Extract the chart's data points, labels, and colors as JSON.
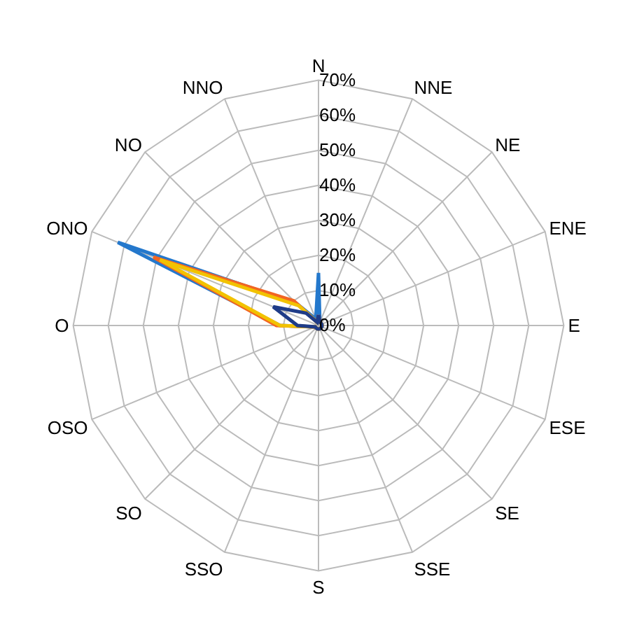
{
  "chart_data": {
    "type": "radar",
    "categories": [
      "N",
      "NNE",
      "NE",
      "ENE",
      "E",
      "ESE",
      "SE",
      "SSE",
      "S",
      "SSO",
      "SO",
      "OSO",
      "O",
      "ONO",
      "NO",
      "NNO"
    ],
    "series": [
      {
        "color": "#2478cc",
        "values": [
          15,
          1,
          1,
          1,
          1,
          1,
          1,
          1,
          1,
          1,
          1,
          1,
          11,
          62,
          9,
          2
        ]
      },
      {
        "color": "#f26522",
        "values": [
          3,
          1,
          1,
          1,
          1,
          1,
          1,
          1,
          1,
          1,
          1,
          1,
          12,
          51,
          10,
          1
        ]
      },
      {
        "color": "#f2c200",
        "values": [
          2,
          1,
          1,
          1,
          1,
          1,
          1,
          1,
          1,
          1,
          1,
          1,
          11,
          49,
          8,
          1
        ]
      },
      {
        "color": "#1f3c88",
        "values": [
          3,
          1,
          1,
          1,
          1,
          1,
          1,
          1,
          1,
          1,
          1,
          1,
          6,
          14,
          5,
          1
        ]
      }
    ],
    "ylim": [
      0,
      70
    ],
    "yticks": [
      {
        "value": 0,
        "label": "0%"
      },
      {
        "value": 10,
        "label": "10%"
      },
      {
        "value": 20,
        "label": "20%"
      },
      {
        "value": 30,
        "label": "30%"
      },
      {
        "value": 40,
        "label": "40%"
      },
      {
        "value": 50,
        "label": "50%"
      },
      {
        "value": 60,
        "label": "60%"
      },
      {
        "value": 70,
        "label": "70%"
      }
    ],
    "grid": true
  }
}
